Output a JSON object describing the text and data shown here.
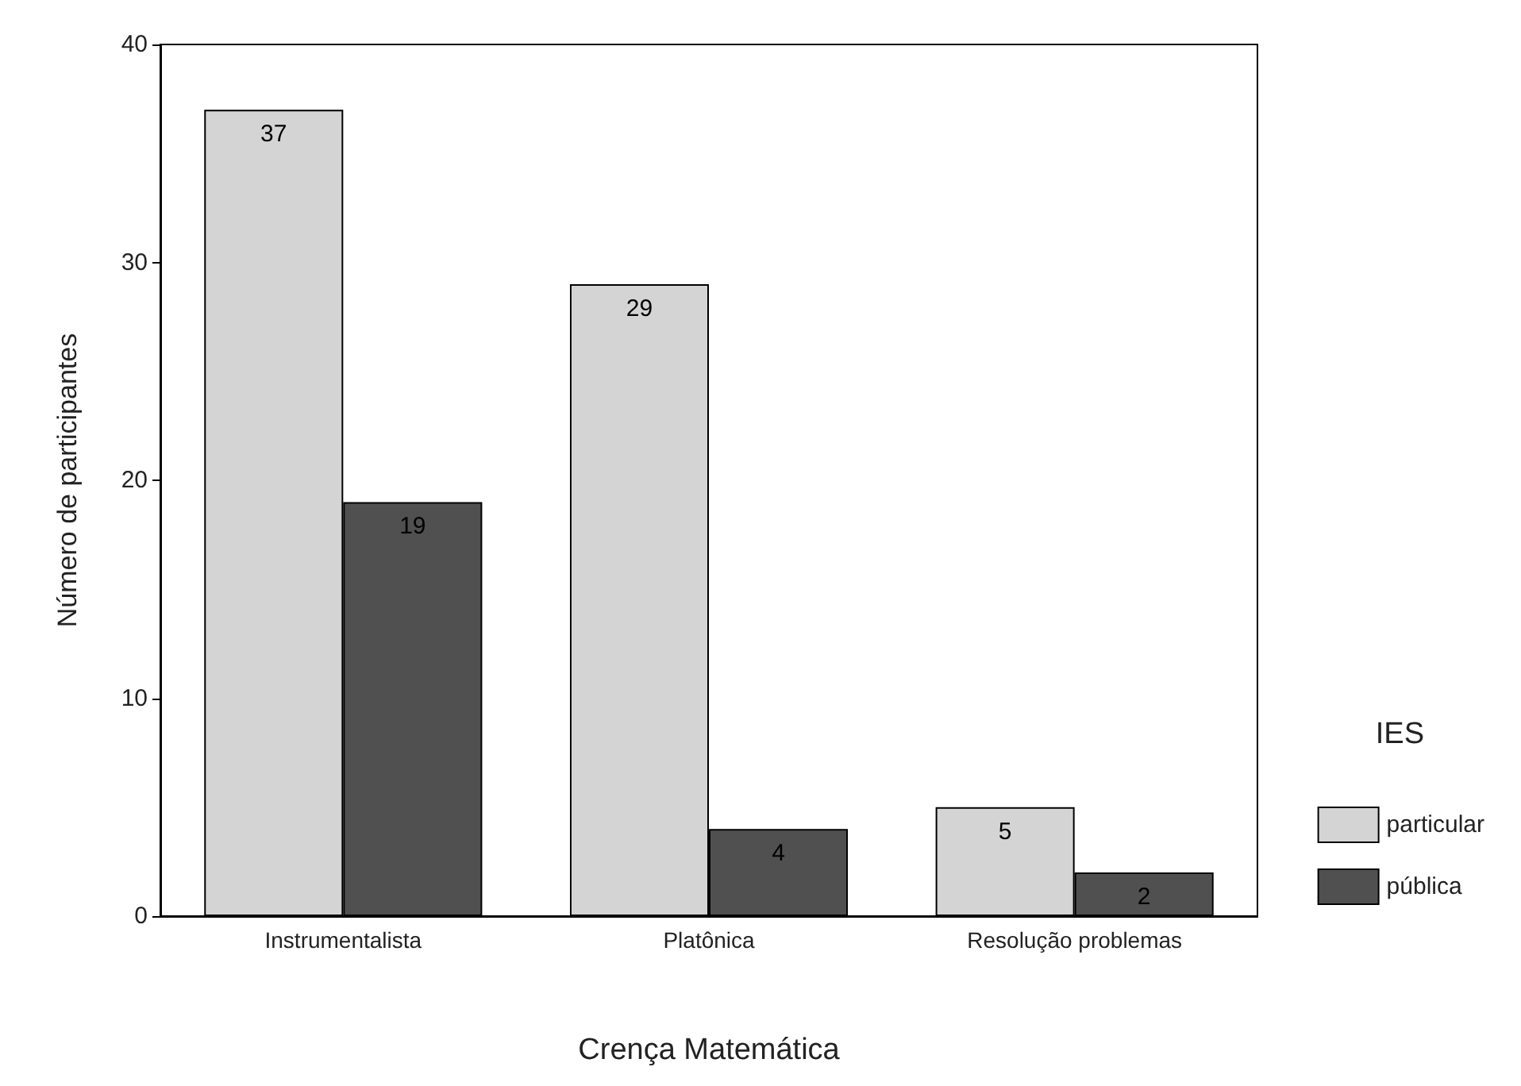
{
  "chart_data": {
    "type": "bar",
    "xlabel": "Crença Matemática",
    "ylabel": "Número de participantes",
    "legend_title": "IES",
    "categories": [
      "Instrumentalista",
      "Platônica",
      "Resolução problemas"
    ],
    "series": [
      {
        "name": "particular",
        "color": "#d4d4d4",
        "values": [
          37,
          29,
          5
        ]
      },
      {
        "name": "pública",
        "color": "#505050",
        "values": [
          19,
          4,
          2
        ]
      }
    ],
    "ylim": [
      0,
      40
    ],
    "yticks": [
      0,
      10,
      20,
      30,
      40
    ],
    "grid": false,
    "legend": "right",
    "data_labels": true
  }
}
